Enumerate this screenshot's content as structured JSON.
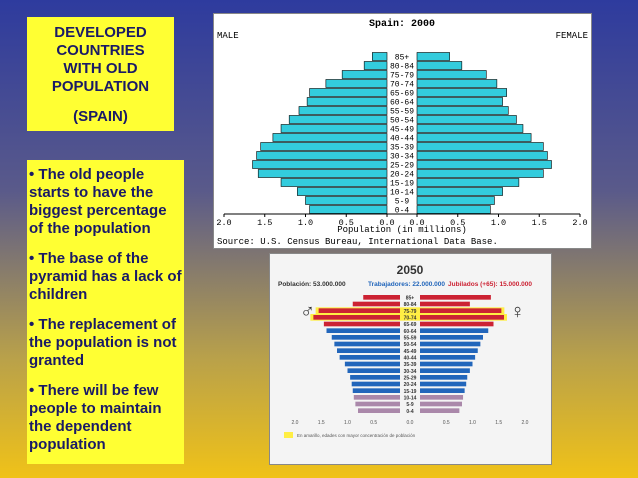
{
  "title_box": {
    "lines": [
      "DEVELOPED",
      "COUNTRIES",
      "WITH OLD",
      "POPULATION"
    ],
    "subtitle": "(SPAIN)"
  },
  "bullets": [
    "• The old people starts to have the biggest percentage of the population",
    "• The base of the pyramid has a lack of children",
    "• The replacement of the population is not granted",
    "• There will be few people to maintain the dependent population"
  ],
  "chart_data": [
    {
      "type": "bar",
      "orientation": "horizontal-pyramid",
      "title": "Spain: 2000",
      "left_label": "MALE",
      "right_label": "FEMALE",
      "xlabel": "Population (in millions)",
      "source": "Source: U.S. Census Bureau, International Data Base.",
      "x_ticks": [
        "2.0",
        "1.5",
        "1.0",
        "0.5",
        "0.0",
        "0.0",
        "0.5",
        "1.0",
        "1.5",
        "2.0"
      ],
      "xlim": [
        0,
        2.0
      ],
      "bar_color": "#33ccdd",
      "categories": [
        "85+",
        "80-84",
        "75-79",
        "70-74",
        "65-69",
        "60-64",
        "55-59",
        "50-54",
        "45-49",
        "40-44",
        "35-39",
        "30-34",
        "25-29",
        "20-24",
        "15-19",
        "10-14",
        "5-9",
        "0-4"
      ],
      "series": [
        {
          "name": "MALE",
          "values": [
            0.18,
            0.28,
            0.55,
            0.75,
            0.95,
            0.98,
            1.08,
            1.2,
            1.3,
            1.4,
            1.55,
            1.6,
            1.65,
            1.58,
            1.3,
            1.1,
            1.0,
            0.95
          ]
        },
        {
          "name": "FEMALE",
          "values": [
            0.4,
            0.55,
            0.85,
            0.98,
            1.1,
            1.05,
            1.12,
            1.22,
            1.3,
            1.4,
            1.55,
            1.6,
            1.65,
            1.55,
            1.25,
            1.05,
            0.95,
            0.9
          ]
        }
      ]
    },
    {
      "type": "bar",
      "orientation": "horizontal-pyramid",
      "title": "2050",
      "header_population": "Población: 53.000.000",
      "header_workers": "Trabajadores: 22.000.000",
      "header_retired": "Jubilados (+65): 15.000.000",
      "male_symbol": "♂",
      "female_symbol": "♀",
      "legend_text": "En amarillo, edades con mayor concentración de población",
      "x_ticks": [
        "2.0",
        "1.5",
        "1.0",
        "0.5",
        "0.0",
        "0.5",
        "1.0",
        "1.5",
        "2.0"
      ],
      "xlim": [
        0,
        2.0
      ],
      "colors": {
        "old": "#cc2233",
        "middle": "#2266bb",
        "young": "#aa88aa",
        "highlight": "#ffee44"
      },
      "categories": [
        "85+",
        "80-84",
        "75-79",
        "70-74",
        "65-69",
        "60-64",
        "55-59",
        "50-54",
        "45-49",
        "40-44",
        "35-39",
        "30-34",
        "25-29",
        "20-24",
        "15-19",
        "10-14",
        "5-9",
        "0-4"
      ],
      "highlighted": [
        "75-79",
        "70-74"
      ],
      "series": [
        {
          "name": "♂",
          "values": [
            0.7,
            0.9,
            1.55,
            1.65,
            1.45,
            1.4,
            1.3,
            1.25,
            1.2,
            1.15,
            1.05,
            1.0,
            0.95,
            0.92,
            0.9,
            0.88,
            0.85,
            0.8
          ]
        },
        {
          "name": "♀",
          "values": [
            1.35,
            0.95,
            1.55,
            1.6,
            1.4,
            1.3,
            1.2,
            1.15,
            1.1,
            1.05,
            1.0,
            0.95,
            0.9,
            0.88,
            0.85,
            0.82,
            0.8,
            0.75
          ]
        }
      ]
    }
  ]
}
